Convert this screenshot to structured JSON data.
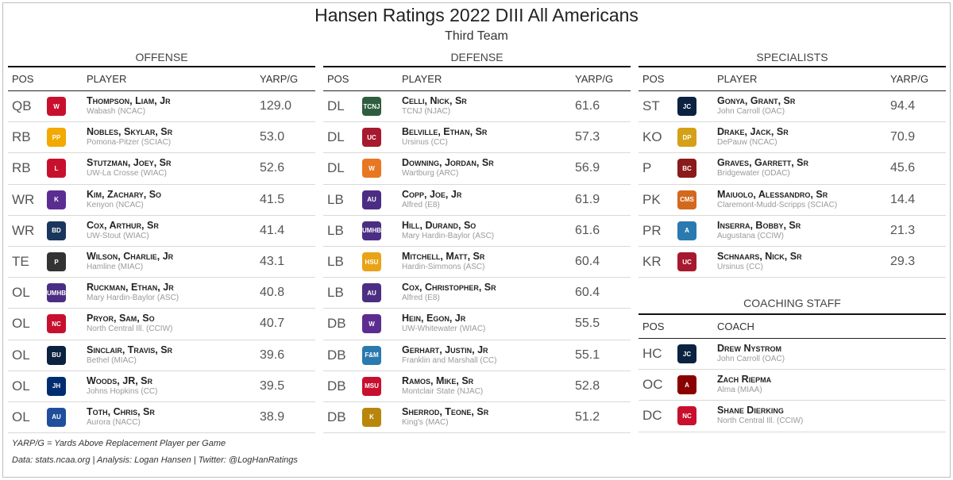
{
  "title": "Hansen Ratings 2022 DIII All Americans",
  "subtitle": "Third Team",
  "headers": {
    "pos": "POS",
    "player": "PLAYER",
    "yarp": "YARP/G",
    "coach": "COACH"
  },
  "offense": {
    "label": "OFFENSE",
    "rows": [
      {
        "pos": "QB",
        "name": "Thompson, Liam, Jr",
        "school": "Wabash (NCAC)",
        "yarp": "129.0",
        "logo": "W",
        "color": "#c8102e"
      },
      {
        "pos": "RB",
        "name": "Nobles, Skylar, Sr",
        "school": "Pomona-Pitzer (SCIAC)",
        "yarp": "53.0",
        "logo": "PP",
        "color": "#f2a900"
      },
      {
        "pos": "RB",
        "name": "Stutzman, Joey, Sr",
        "school": "UW-La Crosse (WIAC)",
        "yarp": "52.6",
        "logo": "L",
        "color": "#c8102e"
      },
      {
        "pos": "WR",
        "name": "Kim, Zachary, So",
        "school": "Kenyon (NCAC)",
        "yarp": "41.5",
        "logo": "K",
        "color": "#5c2d91"
      },
      {
        "pos": "WR",
        "name": "Cox, Arthur, Sr",
        "school": "UW-Stout (WIAC)",
        "yarp": "41.4",
        "logo": "BD",
        "color": "#1b365d"
      },
      {
        "pos": "TE",
        "name": "Wilson, Charlie, Jr",
        "school": "Hamline (MIAC)",
        "yarp": "43.1",
        "logo": "P",
        "color": "#333333"
      },
      {
        "pos": "OL",
        "name": "Ruckman, Ethan, Jr",
        "school": "Mary Hardin-Baylor (ASC)",
        "yarp": "40.8",
        "logo": "UMHB",
        "color": "#4b2e83"
      },
      {
        "pos": "OL",
        "name": "Pryor, Sam, So",
        "school": "North Central Ill. (CCIW)",
        "yarp": "40.7",
        "logo": "NC",
        "color": "#c8102e"
      },
      {
        "pos": "OL",
        "name": "Sinclair, Travis, Sr",
        "school": "Bethel (MIAC)",
        "yarp": "39.6",
        "logo": "BU",
        "color": "#0b2240"
      },
      {
        "pos": "OL",
        "name": "Woods, JR, Sr",
        "school": "Johns Hopkins (CC)",
        "yarp": "39.5",
        "logo": "JH",
        "color": "#002d72"
      },
      {
        "pos": "OL",
        "name": "Toth, Chris, Sr",
        "school": "Aurora (NACC)",
        "yarp": "38.9",
        "logo": "AU",
        "color": "#1f4e9c"
      }
    ]
  },
  "defense": {
    "label": "DEFENSE",
    "rows": [
      {
        "pos": "DL",
        "name": "Celli, Nick, Sr",
        "school": "TCNJ (NJAC)",
        "yarp": "61.6",
        "logo": "TCNJ",
        "color": "#2e5e3f"
      },
      {
        "pos": "DL",
        "name": "Belville, Ethan, Sr",
        "school": "Ursinus (CC)",
        "yarp": "57.3",
        "logo": "UC",
        "color": "#a6192e"
      },
      {
        "pos": "DL",
        "name": "Downing, Jordan, Sr",
        "school": "Wartburg (ARC)",
        "yarp": "56.9",
        "logo": "W",
        "color": "#e87722"
      },
      {
        "pos": "LB",
        "name": "Copp, Joe, Jr",
        "school": "Alfred (E8)",
        "yarp": "61.9",
        "logo": "AU",
        "color": "#4b2e83"
      },
      {
        "pos": "LB",
        "name": "Hill, Durand, So",
        "school": "Mary Hardin-Baylor (ASC)",
        "yarp": "61.6",
        "logo": "UMHB",
        "color": "#4b2e83"
      },
      {
        "pos": "LB",
        "name": "Mitchell, Matt, Sr",
        "school": "Hardin-Simmons (ASC)",
        "yarp": "60.4",
        "logo": "HSU",
        "color": "#e8a317"
      },
      {
        "pos": "LB",
        "name": "Cox, Christopher, Sr",
        "school": "Alfred (E8)",
        "yarp": "60.4",
        "logo": "AU",
        "color": "#4b2e83"
      },
      {
        "pos": "DB",
        "name": "Hein, Egon, Jr",
        "school": "UW-Whitewater (WIAC)",
        "yarp": "55.5",
        "logo": "W",
        "color": "#5c2d91"
      },
      {
        "pos": "DB",
        "name": "Gerhart, Justin, Jr",
        "school": "Franklin and Marshall (CC)",
        "yarp": "55.1",
        "logo": "F&M",
        "color": "#2a7ab0"
      },
      {
        "pos": "DB",
        "name": "Ramos, Mike, Sr",
        "school": "Montclair State (NJAC)",
        "yarp": "52.8",
        "logo": "MSU",
        "color": "#c8102e"
      },
      {
        "pos": "DB",
        "name": "Sherrod, Teone, Sr",
        "school": "King's (MAC)",
        "yarp": "51.2",
        "logo": "K",
        "color": "#b8860b"
      }
    ]
  },
  "specialists": {
    "label": "SPECIALISTS",
    "rows": [
      {
        "pos": "ST",
        "name": "Gonya, Grant, Sr",
        "school": "John Carroll (OAC)",
        "yarp": "94.4",
        "logo": "JC",
        "color": "#0b2240"
      },
      {
        "pos": "KO",
        "name": "Drake, Jack, Sr",
        "school": "DePauw (NCAC)",
        "yarp": "70.9",
        "logo": "DP",
        "color": "#d4a017"
      },
      {
        "pos": "P",
        "name": "Graves, Garrett, Sr",
        "school": "Bridgewater (ODAC)",
        "yarp": "45.6",
        "logo": "BC",
        "color": "#8b1a1a"
      },
      {
        "pos": "PK",
        "name": "Maiuolo, Alessandro, Sr",
        "school": "Claremont-Mudd-Scripps (SCIAC)",
        "yarp": "14.4",
        "logo": "CMS",
        "color": "#d2691e"
      },
      {
        "pos": "PR",
        "name": "Inserra, Bobby, Sr",
        "school": "Augustana (CCIW)",
        "yarp": "21.3",
        "logo": "A",
        "color": "#2a7ab0"
      },
      {
        "pos": "KR",
        "name": "Schnaars, Nick, Sr",
        "school": "Ursinus (CC)",
        "yarp": "29.3",
        "logo": "UC",
        "color": "#a6192e"
      }
    ]
  },
  "coaching": {
    "label": "COACHING STAFF",
    "rows": [
      {
        "pos": "HC",
        "name": "Drew Nystrom",
        "school": "John Carroll (OAC)",
        "logo": "JC",
        "color": "#0b2240"
      },
      {
        "pos": "OC",
        "name": "Zach Riepma",
        "school": "Alma (MIAA)",
        "logo": "A",
        "color": "#8b0000"
      },
      {
        "pos": "DC",
        "name": "Shane Dierking",
        "school": "North Central Ill. (CCIW)",
        "logo": "NC",
        "color": "#c8102e"
      }
    ]
  },
  "footnotes": {
    "definition": "YARP/G = Yards Above Replacement Player per Game",
    "credits": "Data: stats.ncaa.org | Analysis: Logan Hansen | Twitter: @LogHanRatings"
  }
}
